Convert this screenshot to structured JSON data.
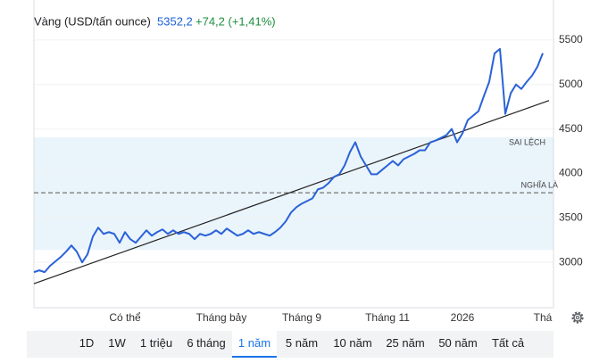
{
  "header": {
    "title": "Vàng (USD/tấn ounce)",
    "price": "5352,2",
    "change": "+74,2 (+1,41%)"
  },
  "chart_data": {
    "type": "line",
    "categories": [
      null,
      null,
      null,
      null,
      null,
      null,
      null,
      null,
      null,
      null,
      null,
      null,
      null,
      null,
      null,
      null,
      null,
      "Có thể",
      null,
      null,
      null,
      null,
      null,
      null,
      null,
      null,
      null,
      null,
      null,
      null,
      null,
      null,
      null,
      null,
      null,
      "Tháng bảy",
      null,
      null,
      null,
      null,
      null,
      null,
      null,
      null,
      null,
      null,
      null,
      null,
      null,
      null,
      "Tháng 9",
      null,
      null,
      null,
      null,
      null,
      null,
      null,
      null,
      null,
      null,
      null,
      null,
      null,
      null,
      null,
      "Tháng 11",
      null,
      null,
      null,
      null,
      null,
      null,
      null,
      null,
      null,
      null,
      null,
      null,
      null,
      "2026",
      null,
      null,
      null,
      null,
      null,
      null,
      null,
      null,
      null,
      null,
      null,
      null,
      null,
      null,
      "Thá"
    ],
    "series": [
      {
        "color": "#2a62d8",
        "values": [
          2890,
          2910,
          2890,
          2960,
          3010,
          3060,
          3120,
          3190,
          3120,
          3000,
          3090,
          3290,
          3390,
          3320,
          3340,
          3320,
          3220,
          3340,
          3260,
          3220,
          3290,
          3360,
          3300,
          3340,
          3370,
          3320,
          3360,
          3320,
          3340,
          3320,
          3260,
          3320,
          3300,
          3320,
          3360,
          3320,
          3380,
          3340,
          3300,
          3320,
          3360,
          3320,
          3340,
          3320,
          3300,
          3340,
          3390,
          3460,
          3560,
          3620,
          3660,
          3690,
          3720,
          3820,
          3840,
          3890,
          3960,
          3990,
          4090,
          4240,
          4350,
          4190,
          4090,
          3990,
          3990,
          4040,
          4090,
          4140,
          4090,
          4160,
          4190,
          4220,
          4260,
          4260,
          4350,
          4370,
          4400,
          4430,
          4500,
          4350,
          4450,
          4600,
          4650,
          4700,
          4870,
          5030,
          5350,
          5400,
          4670,
          4900,
          5000,
          4950,
          5030,
          5100,
          5200,
          5352.2
        ]
      }
    ],
    "ylim": [
      2490,
      5950
    ],
    "yticks": [
      3000,
      3500,
      4000,
      4500,
      5000,
      5500
    ],
    "grid": true,
    "trend_line": {
      "color": "#222222",
      "values": [
        2760,
        4820
      ]
    },
    "mean_line": {
      "label": "NGHĨA LÀ",
      "value": 3783
    },
    "deviation_band": {
      "label": "SAI LỆCH",
      "color": "#eaf4fb",
      "range": [
        3140,
        4406
      ]
    }
  },
  "range_buttons": [
    "1D",
    "1W",
    "1 triệu",
    "6 tháng",
    "1 năm",
    "5 năm",
    "10 năm",
    "25 năm",
    "50 năm",
    "Tất cả"
  ],
  "selected_range": "1 năm"
}
